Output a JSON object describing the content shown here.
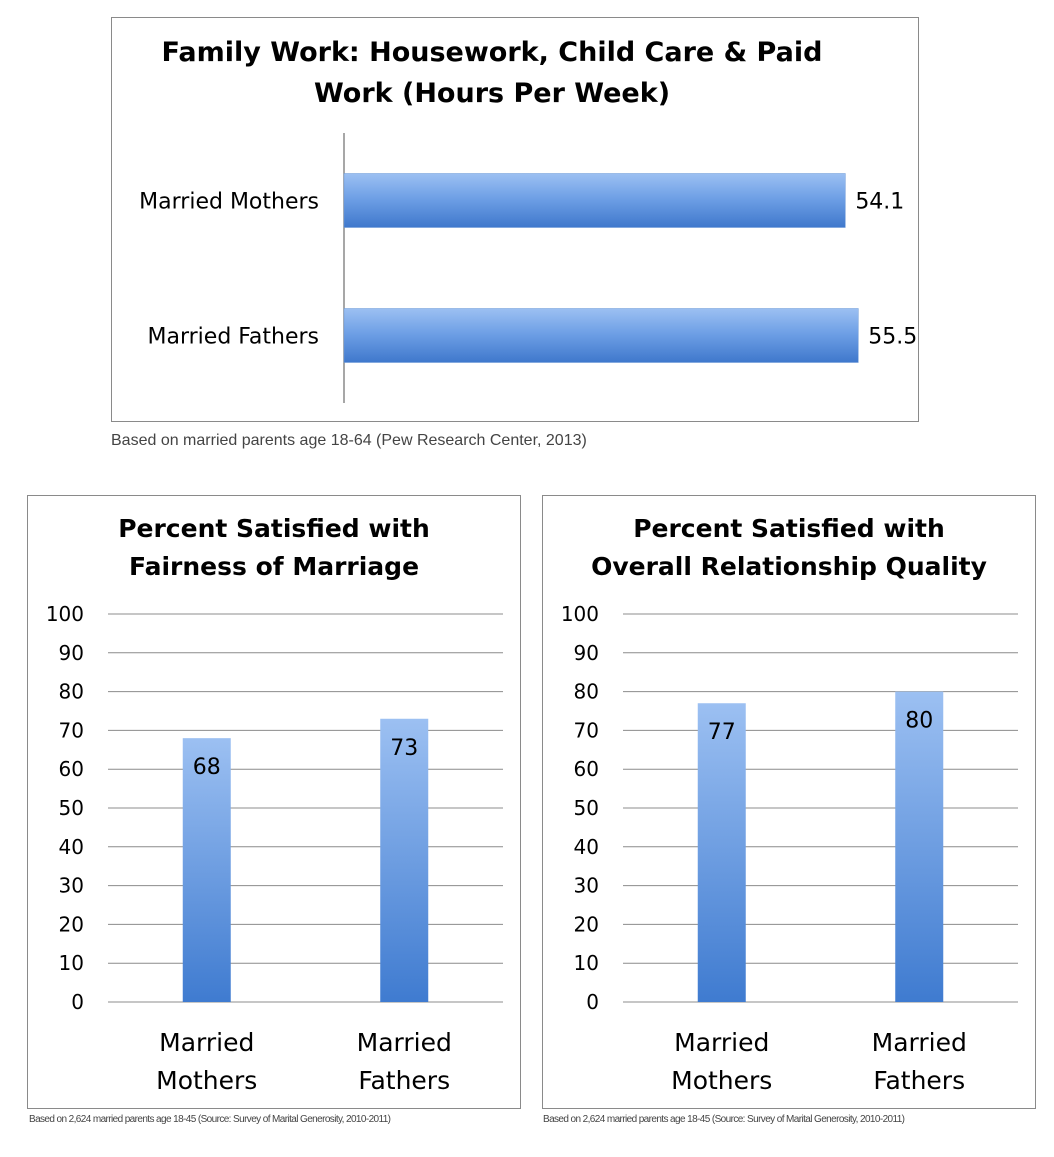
{
  "charts": {
    "hours": {
      "title_lines": [
        "Family Work: Housework, Child Care & Paid",
        "Work (Hours Per Week)"
      ],
      "source_note": "Based on married parents age 18-64 (Pew Research Center, 2013)"
    },
    "fairness": {
      "title_lines": [
        "Percent Satisfied with",
        "Fairness of Marriage"
      ],
      "source_note": "Based on 2,624 married parents age 18-45 (Source: Survey of Marital Generosity, 2010-2011)"
    },
    "quality": {
      "title_lines": [
        "Percent Satisfied with",
        "Overall Relationship Quality"
      ],
      "source_note": "Based on 2,624 married parents age 18-45 (Source: Survey of Marital Generosity, 2010-2011)"
    }
  },
  "chart_data": [
    {
      "type": "bar",
      "orientation": "horizontal",
      "title": "Family Work: Housework, Child Care & Paid Work (Hours Per Week)",
      "categories": [
        "Married Mothers",
        "Married Fathers"
      ],
      "values": [
        54.1,
        55.5
      ],
      "data_labels": [
        "54.1",
        "55.5"
      ],
      "xlim": [
        0,
        60
      ],
      "grid": false,
      "color": "#4a86d8"
    },
    {
      "type": "bar",
      "orientation": "vertical",
      "title": "Percent Satisfied with Fairness of Marriage",
      "categories": [
        [
          "Married",
          "Mothers"
        ],
        [
          "Married",
          "Fathers"
        ]
      ],
      "values": [
        68,
        73
      ],
      "data_labels": [
        "68",
        "73"
      ],
      "ylim": [
        0,
        100
      ],
      "yticks": [
        "0",
        "10",
        "20",
        "30",
        "40",
        "50",
        "60",
        "70",
        "80",
        "90",
        "100"
      ],
      "grid": true,
      "color": "#4a86d8"
    },
    {
      "type": "bar",
      "orientation": "vertical",
      "title": "Percent Satisfied with Overall Relationship Quality",
      "categories": [
        [
          "Married",
          "Mothers"
        ],
        [
          "Married",
          "Fathers"
        ]
      ],
      "values": [
        77,
        80
      ],
      "data_labels": [
        "77",
        "80"
      ],
      "ylim": [
        0,
        100
      ],
      "yticks": [
        "0",
        "10",
        "20",
        "30",
        "40",
        "50",
        "60",
        "70",
        "80",
        "90",
        "100"
      ],
      "grid": true,
      "color": "#4a86d8"
    }
  ]
}
